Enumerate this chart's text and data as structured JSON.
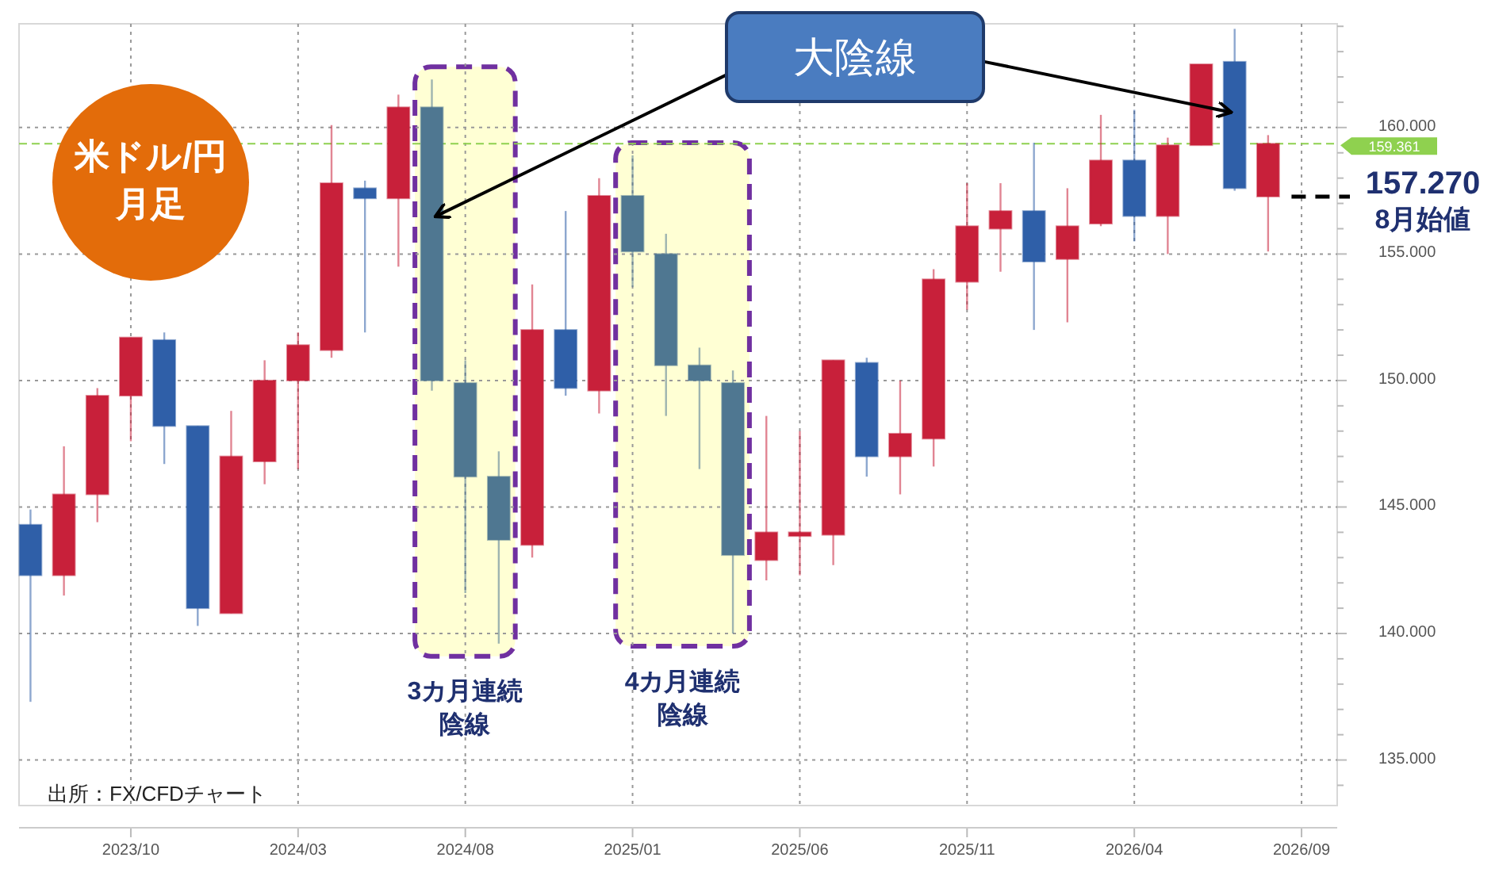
{
  "chart_data": {
    "type": "candlestick",
    "title": "米ドル/円月足",
    "x": [
      "2023-07",
      "2023-08",
      "2023-09",
      "2023-10",
      "2023-11",
      "2023-12",
      "2024-01",
      "2024-02",
      "2024-03",
      "2024-04",
      "2024-05",
      "2024-06",
      "2024-07",
      "2024-08",
      "2024-09",
      "2024-10",
      "2024-11",
      "2024-12",
      "2025-01",
      "2025-02",
      "2025-03",
      "2025-04",
      "2025-05",
      "2025-06",
      "2025-07",
      "2025-08",
      "2025-09",
      "2025-10",
      "2025-11",
      "2025-12",
      "2026-01",
      "2026-02",
      "2026-03",
      "2026-04",
      "2026-05",
      "2026-06",
      "2026-07",
      "2026-08"
    ],
    "ohlc": [
      [
        144.3,
        144.9,
        137.3,
        142.3
      ],
      [
        142.3,
        147.4,
        141.5,
        145.5
      ],
      [
        145.5,
        149.7,
        144.4,
        149.4
      ],
      [
        149.4,
        151.7,
        147.6,
        151.7
      ],
      [
        151.6,
        151.9,
        146.7,
        148.2
      ],
      [
        148.2,
        148.2,
        140.3,
        141.0
      ],
      [
        140.8,
        148.8,
        140.8,
        147.0
      ],
      [
        146.8,
        150.8,
        145.9,
        150.0
      ],
      [
        150.0,
        151.9,
        146.5,
        151.4
      ],
      [
        151.2,
        160.1,
        150.9,
        157.8
      ],
      [
        157.6,
        157.9,
        151.9,
        157.2
      ],
      [
        157.2,
        161.3,
        154.5,
        160.8
      ],
      [
        160.8,
        161.9,
        149.6,
        150.0
      ],
      [
        149.9,
        150.8,
        141.6,
        146.2
      ],
      [
        146.2,
        147.2,
        139.6,
        143.7
      ],
      [
        143.5,
        153.8,
        143.0,
        152.0
      ],
      [
        152.0,
        156.7,
        149.4,
        149.7
      ],
      [
        149.6,
        158.0,
        148.7,
        157.3
      ],
      [
        157.3,
        158.9,
        153.7,
        155.1
      ],
      [
        155.0,
        155.8,
        148.6,
        150.6
      ],
      [
        150.6,
        151.3,
        146.5,
        150.0
      ],
      [
        149.9,
        150.4,
        140.0,
        143.1
      ],
      [
        142.9,
        148.6,
        142.1,
        144.0
      ],
      [
        143.85,
        148.0,
        142.3,
        144.0
      ],
      [
        143.9,
        150.8,
        142.7,
        150.8
      ],
      [
        150.7,
        150.9,
        146.2,
        147.0
      ],
      [
        147.0,
        150.0,
        145.5,
        147.9
      ],
      [
        147.7,
        154.4,
        146.6,
        154.0
      ],
      [
        153.9,
        157.8,
        152.8,
        156.1
      ],
      [
        156.0,
        157.8,
        154.3,
        156.7
      ],
      [
        156.7,
        159.4,
        152.0,
        154.7
      ],
      [
        154.8,
        157.6,
        152.3,
        156.1
      ],
      [
        156.2,
        160.5,
        156.1,
        158.7
      ],
      [
        158.7,
        160.7,
        155.5,
        156.5
      ],
      [
        156.5,
        159.6,
        155.0,
        159.3
      ],
      [
        159.3,
        162.5,
        159.3,
        162.5
      ],
      [
        162.6,
        163.9,
        157.5,
        157.6
      ],
      [
        157.27,
        159.7,
        155.1,
        159.361
      ]
    ],
    "colors": [
      "#2f5fa8",
      "#c8203a",
      "#c8203a",
      "#c8203a",
      "#2f5fa8",
      "#2f5fa8",
      "#c8203a",
      "#c8203a",
      "#c8203a",
      "#c8203a",
      "#2f5fa8",
      "#c8203a",
      "#4f7791",
      "#4f7791",
      "#4f7791",
      "#c8203a",
      "#2f5fa8",
      "#c8203a",
      "#4f7791",
      "#4f7791",
      "#4f7791",
      "#4f7791",
      "#c8203a",
      "#c8203a",
      "#c8203a",
      "#2f5fa8",
      "#c8203a",
      "#c8203a",
      "#c8203a",
      "#c8203a",
      "#2f5fa8",
      "#c8203a",
      "#c8203a",
      "#2f5fa8",
      "#c8203a",
      "#c8203a",
      "#2f5fa8",
      "#c8203a"
    ],
    "xlim": [
      "2023-06-21",
      "2026-10-03"
    ],
    "xticks": [
      {
        "value": "2023-10",
        "label": "2023/10"
      },
      {
        "value": "2024-03",
        "label": "2024/03"
      },
      {
        "value": "2024-08",
        "label": "2024/08"
      },
      {
        "value": "2025-01",
        "label": "2025/01"
      },
      {
        "value": "2025-06",
        "label": "2025/06"
      },
      {
        "value": "2025-11",
        "label": "2025/11"
      },
      {
        "value": "2026-04",
        "label": "2026/04"
      },
      {
        "value": "2026-09",
        "label": "2026/09"
      }
    ],
    "ylim": [
      133.2,
      164.1
    ],
    "yticks": [
      {
        "value": 134,
        "label": null
      },
      {
        "value": 135,
        "label": "135.000"
      },
      {
        "value": 136,
        "label": null
      },
      {
        "value": 137,
        "label": null
      },
      {
        "value": 138,
        "label": null
      },
      {
        "value": 139,
        "label": null
      },
      {
        "value": 140,
        "label": "140.000"
      },
      {
        "value": 141,
        "label": null
      },
      {
        "value": 142,
        "label": null
      },
      {
        "value": 143,
        "label": null
      },
      {
        "value": 144,
        "label": null
      },
      {
        "value": 145,
        "label": "145.000"
      },
      {
        "value": 146,
        "label": null
      },
      {
        "value": 147,
        "label": null
      },
      {
        "value": 148,
        "label": null
      },
      {
        "value": 149,
        "label": null
      },
      {
        "value": 150,
        "label": "150.000"
      },
      {
        "value": 151,
        "label": null
      },
      {
        "value": 152,
        "label": null
      },
      {
        "value": 153,
        "label": null
      },
      {
        "value": 154,
        "label": null
      },
      {
        "value": 155,
        "label": "155.000"
      },
      {
        "value": 156,
        "label": null
      },
      {
        "value": 157,
        "label": null
      },
      {
        "value": 158,
        "label": null
      },
      {
        "value": 159,
        "label": null
      },
      {
        "value": 160,
        "label": "160.000"
      },
      {
        "value": 161,
        "label": null
      },
      {
        "value": 162,
        "label": null
      },
      {
        "value": 163,
        "label": null
      },
      {
        "value": 164,
        "label": null
      }
    ],
    "grid": true,
    "ref_lines": [
      {
        "axis": "y",
        "value": 159.361,
        "label": "159.361",
        "color": "#8fd14f",
        "line_style": "dashed"
      }
    ],
    "bands": [
      {
        "axis": "x",
        "from": "2024-06-16",
        "to": "2024-09-16",
        "label": "3カ月連続陰線",
        "color": "#ffffd4"
      },
      {
        "axis": "x",
        "from": "2024-12-16",
        "to": "2025-04-16",
        "label": "4カ月連続陰線",
        "color": "#ffffd4"
      }
    ],
    "annotations": [
      "大陰線",
      "157.270\n8月始値",
      "出所：FX/CFDチャート"
    ]
  }
}
